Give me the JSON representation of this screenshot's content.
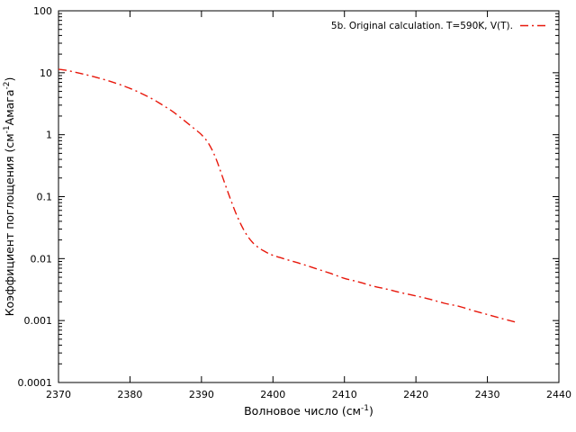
{
  "chart_data": {
    "type": "line",
    "title": "",
    "xlabel": "Волновое число (см^{-1})",
    "ylabel": "Коэффициент поглощения (см^{-1}Амага^{-2})",
    "xlim": [
      2370,
      2440
    ],
    "ylim": [
      0.0001,
      100
    ],
    "x_scale": "linear",
    "y_scale": "log",
    "grid": false,
    "legend_position": "inside-top-right",
    "x_ticks": [
      {
        "value": 2370,
        "label": "2370"
      },
      {
        "value": 2380,
        "label": "2380"
      },
      {
        "value": 2390,
        "label": "2390"
      },
      {
        "value": 2400,
        "label": "2400"
      },
      {
        "value": 2410,
        "label": "2410"
      },
      {
        "value": 2420,
        "label": "2420"
      },
      {
        "value": 2430,
        "label": "2430"
      },
      {
        "value": 2440,
        "label": "2440"
      }
    ],
    "y_ticks": [
      {
        "value": 100,
        "label": "100"
      },
      {
        "value": 10,
        "label": "10"
      },
      {
        "value": 1,
        "label": "1"
      },
      {
        "value": 0.1,
        "label": "0.1"
      },
      {
        "value": 0.01,
        "label": "0.01"
      },
      {
        "value": 0.001,
        "label": "0.001"
      },
      {
        "value": 0.0001,
        "label": "0.0001"
      }
    ],
    "series": [
      {
        "name": "5b. Original calculation. T=590K, V(T).",
        "color": "#e8180c",
        "line_style": "dash-dot",
        "points": [
          [
            2370,
            11.4
          ],
          [
            2371,
            11.0
          ],
          [
            2372,
            10.4
          ],
          [
            2373,
            9.8
          ],
          [
            2374,
            9.2
          ],
          [
            2375,
            8.6
          ],
          [
            2376,
            8.0
          ],
          [
            2377,
            7.4
          ],
          [
            2378,
            6.8
          ],
          [
            2379,
            6.2
          ],
          [
            2380,
            5.6
          ],
          [
            2381,
            5.0
          ],
          [
            2382,
            4.4
          ],
          [
            2383,
            3.85
          ],
          [
            2384,
            3.3
          ],
          [
            2385,
            2.8
          ],
          [
            2386,
            2.35
          ],
          [
            2387,
            1.92
          ],
          [
            2388,
            1.55
          ],
          [
            2389,
            1.25
          ],
          [
            2390,
            1.0
          ],
          [
            2391,
            0.72
          ],
          [
            2392,
            0.42
          ],
          [
            2393,
            0.2
          ],
          [
            2394,
            0.095
          ],
          [
            2395,
            0.048
          ],
          [
            2396,
            0.028
          ],
          [
            2397,
            0.019
          ],
          [
            2398,
            0.015
          ],
          [
            2399,
            0.0128
          ],
          [
            2400,
            0.0113
          ],
          [
            2402,
            0.0096
          ],
          [
            2404,
            0.0082
          ],
          [
            2406,
            0.0069
          ],
          [
            2408,
            0.0058
          ],
          [
            2410,
            0.0048
          ],
          [
            2412,
            0.0042
          ],
          [
            2414,
            0.0036
          ],
          [
            2416,
            0.0032
          ],
          [
            2418,
            0.0028
          ],
          [
            2420,
            0.0025
          ],
          [
            2422,
            0.0022
          ],
          [
            2424,
            0.0019
          ],
          [
            2426,
            0.0017
          ],
          [
            2428,
            0.00145
          ],
          [
            2430,
            0.00125
          ],
          [
            2432,
            0.00108
          ],
          [
            2434,
            0.00094
          ]
        ]
      }
    ]
  },
  "colors": {
    "background": "#ffffff",
    "axis": "#000000",
    "text": "#000000",
    "series_red": "#e8180c"
  }
}
